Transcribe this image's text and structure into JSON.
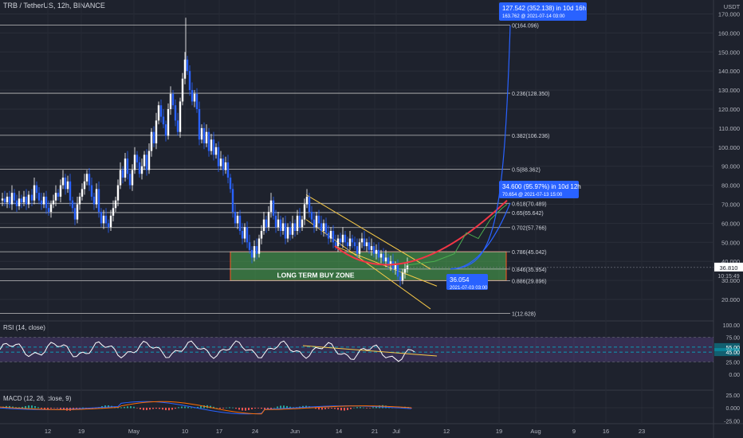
{
  "header": {
    "symbol": "TRB / TetherUS, 12h, BINANCE",
    "currency": "USDT"
  },
  "colors": {
    "background": "#1e222d",
    "bull": "#ffffff",
    "bear": "#2962ff",
    "fib_line": "#c0c0c0",
    "buy_zone_fill": "#4caf50",
    "buy_zone_border": "#ff5722",
    "curve_red": "#f23645",
    "curve_green": "#4caf50",
    "channel": "#f7c948",
    "projection": "#2962ff",
    "rsi_band": "#7e57c2",
    "rsi_level": "#00bcd4"
  },
  "price_axis": {
    "ticks": [
      "170.000",
      "160.000",
      "150.000",
      "140.000",
      "130.000",
      "120.000",
      "110.000",
      "100.000",
      "90.000",
      "80.000",
      "70.000",
      "60.000",
      "50.000",
      "40.000",
      "30.000",
      "20.000",
      "10.000"
    ],
    "current_price": "36.810",
    "countdown": "10:15:49"
  },
  "rsi_axis": {
    "ticks": [
      "100.00",
      "75.00",
      "25.00",
      "0.00"
    ],
    "upper": "55.00",
    "lower": "45.00"
  },
  "macd_axis": {
    "ticks": [
      "25.00",
      "0.000",
      "-25.00"
    ]
  },
  "time_axis": {
    "ticks": [
      "12",
      "19",
      "May",
      "10",
      "17",
      "24",
      "Jun",
      "14",
      "21",
      "Jul",
      "12",
      "19",
      "Aug",
      "9",
      "16",
      "23"
    ]
  },
  "fib_levels": [
    {
      "label": "0(164.096)",
      "price": 164.096
    },
    {
      "label": "0.236(128.350)",
      "price": 128.35
    },
    {
      "label": "0.382(106.236)",
      "price": 106.236
    },
    {
      "label": "0.5(88.362)",
      "price": 88.362
    },
    {
      "label": "0.618(70.489)",
      "price": 70.489
    },
    {
      "label": "0.65(65.642)",
      "price": 65.642
    },
    {
      "label": "0.702(57.766)",
      "price": 57.766
    },
    {
      "label": "0.786(45.042)",
      "price": 45.042
    },
    {
      "label": "0.846(35.954)",
      "price": 35.954
    },
    {
      "label": "0.886(29.896)",
      "price": 29.896
    },
    {
      "label": "1(12.628)",
      "price": 12.628
    }
  ],
  "annotations": {
    "buy_zone": "LONG TERM BUY ZONE",
    "proj1_line1": "127.542 (352.138) in 10d 16h",
    "proj1_line2": "163.762 @ 2021-07-14 03:00",
    "proj2_line1": "34.600 (95.97%) in 10d 12h",
    "proj2_line2": "70.654 @ 2021-07-13 15:00",
    "low_line1": "36.054",
    "low_line2": "2021-07-03 03:00"
  },
  "indicators": {
    "rsi_title": "RSI (14, close)",
    "macd_title": "MACD (12, 26, close, 9)"
  },
  "chart_data": {
    "type": "candlestick",
    "title": "TRB / TetherUS, 12h, BINANCE",
    "ylabel": "USDT",
    "ylim": [
      5,
      178
    ],
    "close_path": [
      [
        0,
        72
      ],
      [
        3,
        73
      ],
      [
        6,
        71
      ],
      [
        9,
        74
      ],
      [
        12,
        70
      ],
      [
        15,
        76
      ],
      [
        18,
        72
      ],
      [
        21,
        69
      ],
      [
        24,
        73
      ],
      [
        27,
        71
      ],
      [
        30,
        74
      ],
      [
        33,
        70
      ],
      [
        36,
        75
      ],
      [
        40,
        72
      ],
      [
        43,
        80
      ],
      [
        46,
        76
      ],
      [
        49,
        72
      ],
      [
        52,
        70
      ],
      [
        55,
        74
      ],
      [
        58,
        68
      ],
      [
        61,
        66
      ],
      [
        64,
        70
      ],
      [
        67,
        72
      ],
      [
        70,
        76
      ],
      [
        73,
        74
      ],
      [
        76,
        80
      ],
      [
        79,
        84
      ],
      [
        82,
        78
      ],
      [
        85,
        82
      ],
      [
        88,
        72
      ],
      [
        91,
        68
      ],
      [
        94,
        62
      ],
      [
        97,
        70
      ],
      [
        100,
        74
      ],
      [
        103,
        78
      ],
      [
        106,
        82
      ],
      [
        109,
        86
      ],
      [
        112,
        80
      ],
      [
        115,
        74
      ],
      [
        118,
        70
      ],
      [
        121,
        78
      ],
      [
        124,
        66
      ],
      [
        127,
        60
      ],
      [
        130,
        64
      ],
      [
        133,
        60
      ],
      [
        136,
        58
      ],
      [
        139,
        64
      ],
      [
        142,
        68
      ],
      [
        145,
        72
      ],
      [
        148,
        80
      ],
      [
        151,
        88
      ],
      [
        154,
        84
      ],
      [
        157,
        94
      ],
      [
        160,
        86
      ],
      [
        163,
        80
      ],
      [
        166,
        88
      ],
      [
        169,
        96
      ],
      [
        172,
        92
      ],
      [
        175,
        86
      ],
      [
        178,
        90
      ],
      [
        181,
        96
      ],
      [
        184,
        88
      ],
      [
        187,
        98
      ],
      [
        190,
        108
      ],
      [
        193,
        102
      ],
      [
        196,
        114
      ],
      [
        199,
        122
      ],
      [
        202,
        116
      ],
      [
        205,
        112
      ],
      [
        208,
        106
      ],
      [
        211,
        120
      ],
      [
        214,
        128
      ],
      [
        217,
        122
      ],
      [
        220,
        114
      ],
      [
        223,
        108
      ],
      [
        226,
        124
      ],
      [
        229,
        136
      ],
      [
        232,
        146
      ],
      [
        235,
        140
      ],
      [
        238,
        130
      ],
      [
        241,
        124
      ],
      [
        244,
        128
      ],
      [
        247,
        120
      ],
      [
        250,
        104
      ],
      [
        253,
        110
      ],
      [
        256,
        102
      ],
      [
        259,
        108
      ],
      [
        262,
        98
      ],
      [
        265,
        104
      ],
      [
        268,
        96
      ],
      [
        271,
        100
      ],
      [
        274,
        90
      ],
      [
        277,
        94
      ],
      [
        280,
        88
      ],
      [
        283,
        92
      ],
      [
        286,
        84
      ],
      [
        289,
        78
      ],
      [
        292,
        66
      ],
      [
        295,
        60
      ],
      [
        298,
        64
      ],
      [
        301,
        56
      ],
      [
        304,
        52
      ],
      [
        307,
        58
      ],
      [
        310,
        50
      ],
      [
        313,
        46
      ],
      [
        316,
        42
      ],
      [
        319,
        48
      ],
      [
        322,
        44
      ],
      [
        325,
        52
      ],
      [
        328,
        56
      ],
      [
        331,
        62
      ],
      [
        334,
        58
      ],
      [
        337,
        66
      ],
      [
        340,
        72
      ],
      [
        343,
        64
      ],
      [
        346,
        58
      ],
      [
        349,
        62
      ],
      [
        352,
        56
      ],
      [
        355,
        60
      ],
      [
        358,
        52
      ],
      [
        361,
        58
      ],
      [
        364,
        54
      ],
      [
        367,
        60
      ],
      [
        370,
        56
      ],
      [
        373,
        64
      ],
      [
        376,
        58
      ],
      [
        379,
        62
      ],
      [
        382,
        70
      ],
      [
        385,
        74
      ],
      [
        388,
        66
      ],
      [
        391,
        62
      ],
      [
        394,
        58
      ],
      [
        397,
        64
      ],
      [
        400,
        60
      ],
      [
        403,
        56
      ],
      [
        406,
        60
      ],
      [
        409,
        55
      ],
      [
        412,
        52
      ],
      [
        415,
        56
      ],
      [
        418,
        50
      ],
      [
        421,
        48
      ],
      [
        424,
        52
      ],
      [
        427,
        50
      ],
      [
        430,
        54
      ],
      [
        433,
        50
      ],
      [
        436,
        48
      ],
      [
        439,
        52
      ],
      [
        442,
        50
      ],
      [
        445,
        48
      ],
      [
        448,
        44
      ],
      [
        451,
        50
      ],
      [
        454,
        52
      ],
      [
        457,
        48
      ],
      [
        460,
        50
      ],
      [
        463,
        46
      ],
      [
        466,
        48
      ],
      [
        469,
        44
      ],
      [
        472,
        46
      ],
      [
        475,
        42
      ],
      [
        478,
        44
      ],
      [
        481,
        40
      ],
      [
        484,
        42
      ],
      [
        487,
        38
      ],
      [
        490,
        40
      ],
      [
        493,
        36
      ],
      [
        496,
        38
      ],
      [
        499,
        32
      ],
      [
        502,
        30
      ],
      [
        505,
        34
      ],
      [
        508,
        36
      ],
      [
        511,
        38
      ]
    ],
    "projections": [
      {
        "from": [
          565,
          36.05
        ],
        "to": [
          640,
          164.0
        ]
      },
      {
        "from": [
          565,
          36.05
        ],
        "to": [
          640,
          70.7
        ]
      }
    ],
    "rsi": {
      "ylim": [
        0,
        100
      ],
      "upper": 55,
      "lower": 45
    },
    "macd": {
      "ylim": [
        -25,
        25
      ]
    }
  }
}
